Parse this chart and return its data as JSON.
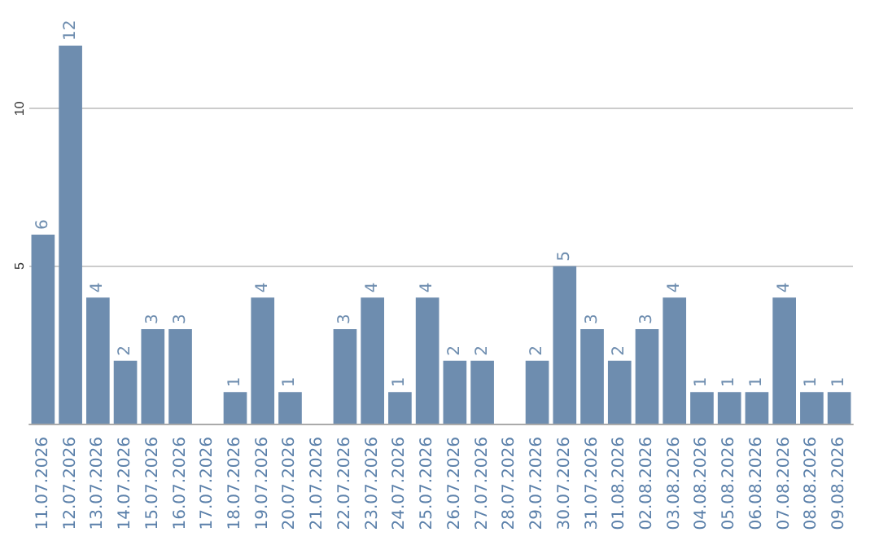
{
  "chart_data": {
    "type": "bar",
    "categories": [
      "11.07.2026",
      "12.07.2026",
      "13.07.2026",
      "14.07.2026",
      "15.07.2026",
      "16.07.2026",
      "17.07.2026",
      "18.07.2026",
      "19.07.2026",
      "20.07.2026",
      "21.07.2026",
      "22.07.2026",
      "23.07.2026",
      "24.07.2026",
      "25.07.2026",
      "26.07.2026",
      "27.07.2026",
      "28.07.2026",
      "29.07.2026",
      "30.07.2026",
      "31.07.2026",
      "01.08.2026",
      "02.08.2026",
      "03.08.2026",
      "04.08.2026",
      "05.08.2026",
      "06.08.2026",
      "07.08.2026",
      "08.08.2026",
      "09.08.2026"
    ],
    "values": [
      6,
      12,
      4,
      2,
      3,
      3,
      0,
      1,
      4,
      1,
      0,
      3,
      4,
      1,
      4,
      2,
      2,
      0,
      2,
      5,
      3,
      2,
      3,
      4,
      1,
      1,
      1,
      4,
      1,
      1
    ],
    "value_labels": [
      "6",
      "12",
      "4",
      "2",
      "3",
      "3",
      null,
      "1",
      "4",
      "1",
      null,
      "3",
      "4",
      "1",
      "4",
      "2",
      "2",
      null,
      "2",
      "5",
      "3",
      "2",
      "3",
      "4",
      "1",
      "1",
      "1",
      "4",
      "1",
      "1"
    ],
    "color": "#6e8daf",
    "ylim": [
      0,
      12
    ],
    "yticks": [
      5,
      10
    ],
    "grid": "y"
  }
}
